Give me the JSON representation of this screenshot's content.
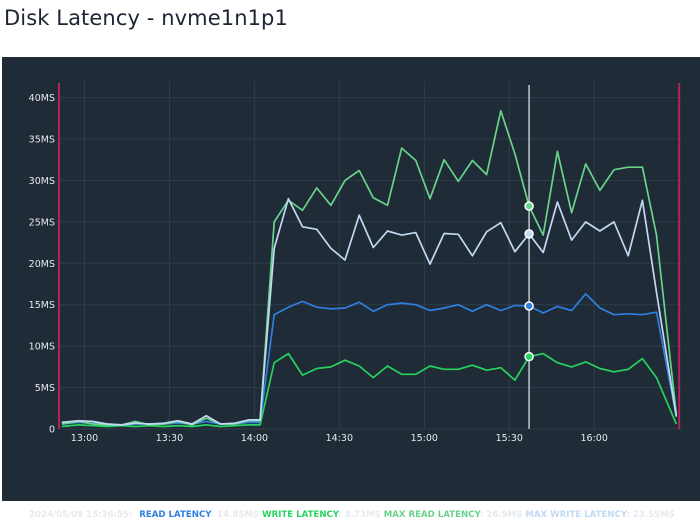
{
  "page": {
    "title": "Disk Latency - nvme1n1p1"
  },
  "colors": {
    "background": "#1f2b36",
    "grid": "#2f3d4a",
    "cursor": "#c9d2da",
    "boundary": "#b2245a",
    "read": "#2f7fe0",
    "write": "#25d35e",
    "max_read": "#69d38c",
    "max_write": "#c3d8f2"
  },
  "chart_data": {
    "type": "line",
    "x_range": [
      "12:51",
      "16:31"
    ],
    "y_range": [
      0,
      42
    ],
    "y_ticks": [
      {
        "value": 0,
        "label": "0"
      },
      {
        "value": 5,
        "label": "5MS"
      },
      {
        "value": 10,
        "label": "10MS"
      },
      {
        "value": 15,
        "label": "15MS"
      },
      {
        "value": 20,
        "label": "20MS"
      },
      {
        "value": 25,
        "label": "25MS"
      },
      {
        "value": 30,
        "label": "30MS"
      },
      {
        "value": 35,
        "label": "35MS"
      },
      {
        "value": 40,
        "label": "40MS"
      }
    ],
    "x_ticks": [
      "13:00",
      "13:30",
      "14:00",
      "14:30",
      "15:00",
      "15:30",
      "16:00"
    ],
    "grid": true,
    "boundaries": [
      "12:51",
      "16:30"
    ],
    "cursor": {
      "time": "15:37",
      "timestamp": "2024/05/09 15:36:55:"
    },
    "series": [
      {
        "name": "READ LATENCY",
        "key": "read",
        "color": "#2f7fe0",
        "cursor_value": "14.85MS",
        "points": [
          [
            "12:52",
            0.6
          ],
          [
            "12:58",
            0.8
          ],
          [
            "13:03",
            0.7
          ],
          [
            "13:08",
            0.6
          ],
          [
            "13:13",
            0.5
          ],
          [
            "13:18",
            0.6
          ],
          [
            "13:23",
            0.6
          ],
          [
            "13:28",
            0.6
          ],
          [
            "13:33",
            0.7
          ],
          [
            "13:38",
            0.6
          ],
          [
            "13:43",
            0.9
          ],
          [
            "13:48",
            0.6
          ],
          [
            "13:53",
            0.6
          ],
          [
            "13:58",
            0.8
          ],
          [
            "14:02",
            0.8
          ],
          [
            "14:07",
            13.8
          ],
          [
            "14:12",
            14.7
          ],
          [
            "14:17",
            15.4
          ],
          [
            "14:22",
            14.7
          ],
          [
            "14:27",
            14.5
          ],
          [
            "14:32",
            14.6
          ],
          [
            "14:37",
            15.3
          ],
          [
            "14:42",
            14.2
          ],
          [
            "14:47",
            15.0
          ],
          [
            "14:52",
            15.2
          ],
          [
            "14:57",
            15.0
          ],
          [
            "15:02",
            14.3
          ],
          [
            "15:07",
            14.6
          ],
          [
            "15:12",
            15.0
          ],
          [
            "15:17",
            14.2
          ],
          [
            "15:22",
            15.0
          ],
          [
            "15:27",
            14.3
          ],
          [
            "15:32",
            14.9
          ],
          [
            "15:37",
            14.85
          ],
          [
            "15:42",
            14.0
          ],
          [
            "15:47",
            14.8
          ],
          [
            "15:52",
            14.3
          ],
          [
            "15:57",
            16.3
          ],
          [
            "16:02",
            14.6
          ],
          [
            "16:07",
            13.8
          ],
          [
            "16:12",
            13.9
          ],
          [
            "16:17",
            13.8
          ],
          [
            "16:22",
            14.1
          ],
          [
            "16:29",
            1.5
          ]
        ]
      },
      {
        "name": "WRITE LATENCY",
        "key": "write",
        "color": "#25d35e",
        "cursor_value": "8.73MS",
        "points": [
          [
            "12:52",
            0.3
          ],
          [
            "12:58",
            0.5
          ],
          [
            "13:03",
            0.4
          ],
          [
            "13:08",
            0.3
          ],
          [
            "13:13",
            0.4
          ],
          [
            "13:18",
            0.3
          ],
          [
            "13:23",
            0.4
          ],
          [
            "13:28",
            0.3
          ],
          [
            "13:33",
            0.4
          ],
          [
            "13:38",
            0.3
          ],
          [
            "13:43",
            0.5
          ],
          [
            "13:48",
            0.3
          ],
          [
            "13:53",
            0.4
          ],
          [
            "13:58",
            0.5
          ],
          [
            "14:02",
            0.5
          ],
          [
            "14:07",
            8.0
          ],
          [
            "14:12",
            9.1
          ],
          [
            "14:17",
            6.5
          ],
          [
            "14:22",
            7.3
          ],
          [
            "14:27",
            7.5
          ],
          [
            "14:32",
            8.3
          ],
          [
            "14:37",
            7.6
          ],
          [
            "14:42",
            6.2
          ],
          [
            "14:47",
            7.6
          ],
          [
            "14:52",
            6.6
          ],
          [
            "14:57",
            6.6
          ],
          [
            "15:02",
            7.6
          ],
          [
            "15:07",
            7.2
          ],
          [
            "15:12",
            7.2
          ],
          [
            "15:17",
            7.7
          ],
          [
            "15:22",
            7.1
          ],
          [
            "15:27",
            7.4
          ],
          [
            "15:32",
            5.9
          ],
          [
            "15:37",
            8.73
          ],
          [
            "15:42",
            9.1
          ],
          [
            "15:47",
            8.0
          ],
          [
            "15:52",
            7.5
          ],
          [
            "15:57",
            8.1
          ],
          [
            "16:02",
            7.3
          ],
          [
            "16:07",
            6.9
          ],
          [
            "16:12",
            7.2
          ],
          [
            "16:17",
            8.5
          ],
          [
            "16:22",
            6.2
          ],
          [
            "16:29",
            0.6
          ]
        ]
      },
      {
        "name": "MAX READ LATENCY",
        "key": "max_read",
        "color": "#69d38c",
        "cursor_value": "26.9MS",
        "points": [
          [
            "12:52",
            0.6
          ],
          [
            "12:58",
            0.9
          ],
          [
            "13:03",
            0.6
          ],
          [
            "13:08",
            0.5
          ],
          [
            "13:13",
            0.5
          ],
          [
            "13:18",
            0.9
          ],
          [
            "13:23",
            0.5
          ],
          [
            "13:28",
            0.6
          ],
          [
            "13:33",
            0.9
          ],
          [
            "13:38",
            0.5
          ],
          [
            "13:43",
            1.3
          ],
          [
            "13:48",
            0.6
          ],
          [
            "13:53",
            0.6
          ],
          [
            "13:58",
            1.0
          ],
          [
            "14:02",
            1.0
          ],
          [
            "14:07",
            25.0
          ],
          [
            "14:12",
            27.6
          ],
          [
            "14:17",
            26.4
          ],
          [
            "14:22",
            29.1
          ],
          [
            "14:27",
            27.0
          ],
          [
            "14:32",
            30.0
          ],
          [
            "14:37",
            31.2
          ],
          [
            "14:42",
            27.9
          ],
          [
            "14:47",
            27.0
          ],
          [
            "14:52",
            33.9
          ],
          [
            "14:57",
            32.4
          ],
          [
            "15:02",
            27.8
          ],
          [
            "15:07",
            32.5
          ],
          [
            "15:12",
            29.9
          ],
          [
            "15:17",
            32.4
          ],
          [
            "15:22",
            30.7
          ],
          [
            "15:27",
            38.4
          ],
          [
            "15:32",
            33.2
          ],
          [
            "15:37",
            26.9
          ],
          [
            "15:42",
            23.4
          ],
          [
            "15:47",
            33.5
          ],
          [
            "15:52",
            26.1
          ],
          [
            "15:57",
            32.0
          ],
          [
            "16:02",
            28.8
          ],
          [
            "16:07",
            31.3
          ],
          [
            "16:12",
            31.6
          ],
          [
            "16:17",
            31.6
          ],
          [
            "16:22",
            23.4
          ],
          [
            "16:29",
            1.8
          ]
        ]
      },
      {
        "name": "MAX WRITE LATENCY",
        "key": "max_write",
        "color": "#c3d8f2",
        "cursor_value": "23.55MS",
        "points": [
          [
            "12:52",
            0.8
          ],
          [
            "12:58",
            1.0
          ],
          [
            "13:03",
            0.9
          ],
          [
            "13:08",
            0.6
          ],
          [
            "13:13",
            0.5
          ],
          [
            "13:18",
            0.7
          ],
          [
            "13:23",
            0.6
          ],
          [
            "13:28",
            0.7
          ],
          [
            "13:33",
            1.0
          ],
          [
            "13:38",
            0.6
          ],
          [
            "13:43",
            1.6
          ],
          [
            "13:48",
            0.6
          ],
          [
            "13:53",
            0.7
          ],
          [
            "13:58",
            1.1
          ],
          [
            "14:02",
            1.1
          ],
          [
            "14:07",
            21.8
          ],
          [
            "14:12",
            27.8
          ],
          [
            "14:17",
            24.4
          ],
          [
            "14:22",
            24.1
          ],
          [
            "14:27",
            21.8
          ],
          [
            "14:32",
            20.4
          ],
          [
            "14:37",
            25.8
          ],
          [
            "14:42",
            21.9
          ],
          [
            "14:47",
            23.9
          ],
          [
            "14:52",
            23.4
          ],
          [
            "14:57",
            23.7
          ],
          [
            "15:02",
            19.9
          ],
          [
            "15:07",
            23.6
          ],
          [
            "15:12",
            23.5
          ],
          [
            "15:17",
            20.9
          ],
          [
            "15:22",
            23.8
          ],
          [
            "15:27",
            24.9
          ],
          [
            "15:32",
            21.4
          ],
          [
            "15:37",
            23.55
          ],
          [
            "15:42",
            21.3
          ],
          [
            "15:47",
            27.4
          ],
          [
            "15:52",
            22.8
          ],
          [
            "15:57",
            25.0
          ],
          [
            "16:02",
            23.9
          ],
          [
            "16:07",
            25.0
          ],
          [
            "16:12",
            20.9
          ],
          [
            "16:17",
            27.6
          ],
          [
            "16:22",
            16.5
          ],
          [
            "16:29",
            1.5
          ]
        ]
      }
    ]
  }
}
